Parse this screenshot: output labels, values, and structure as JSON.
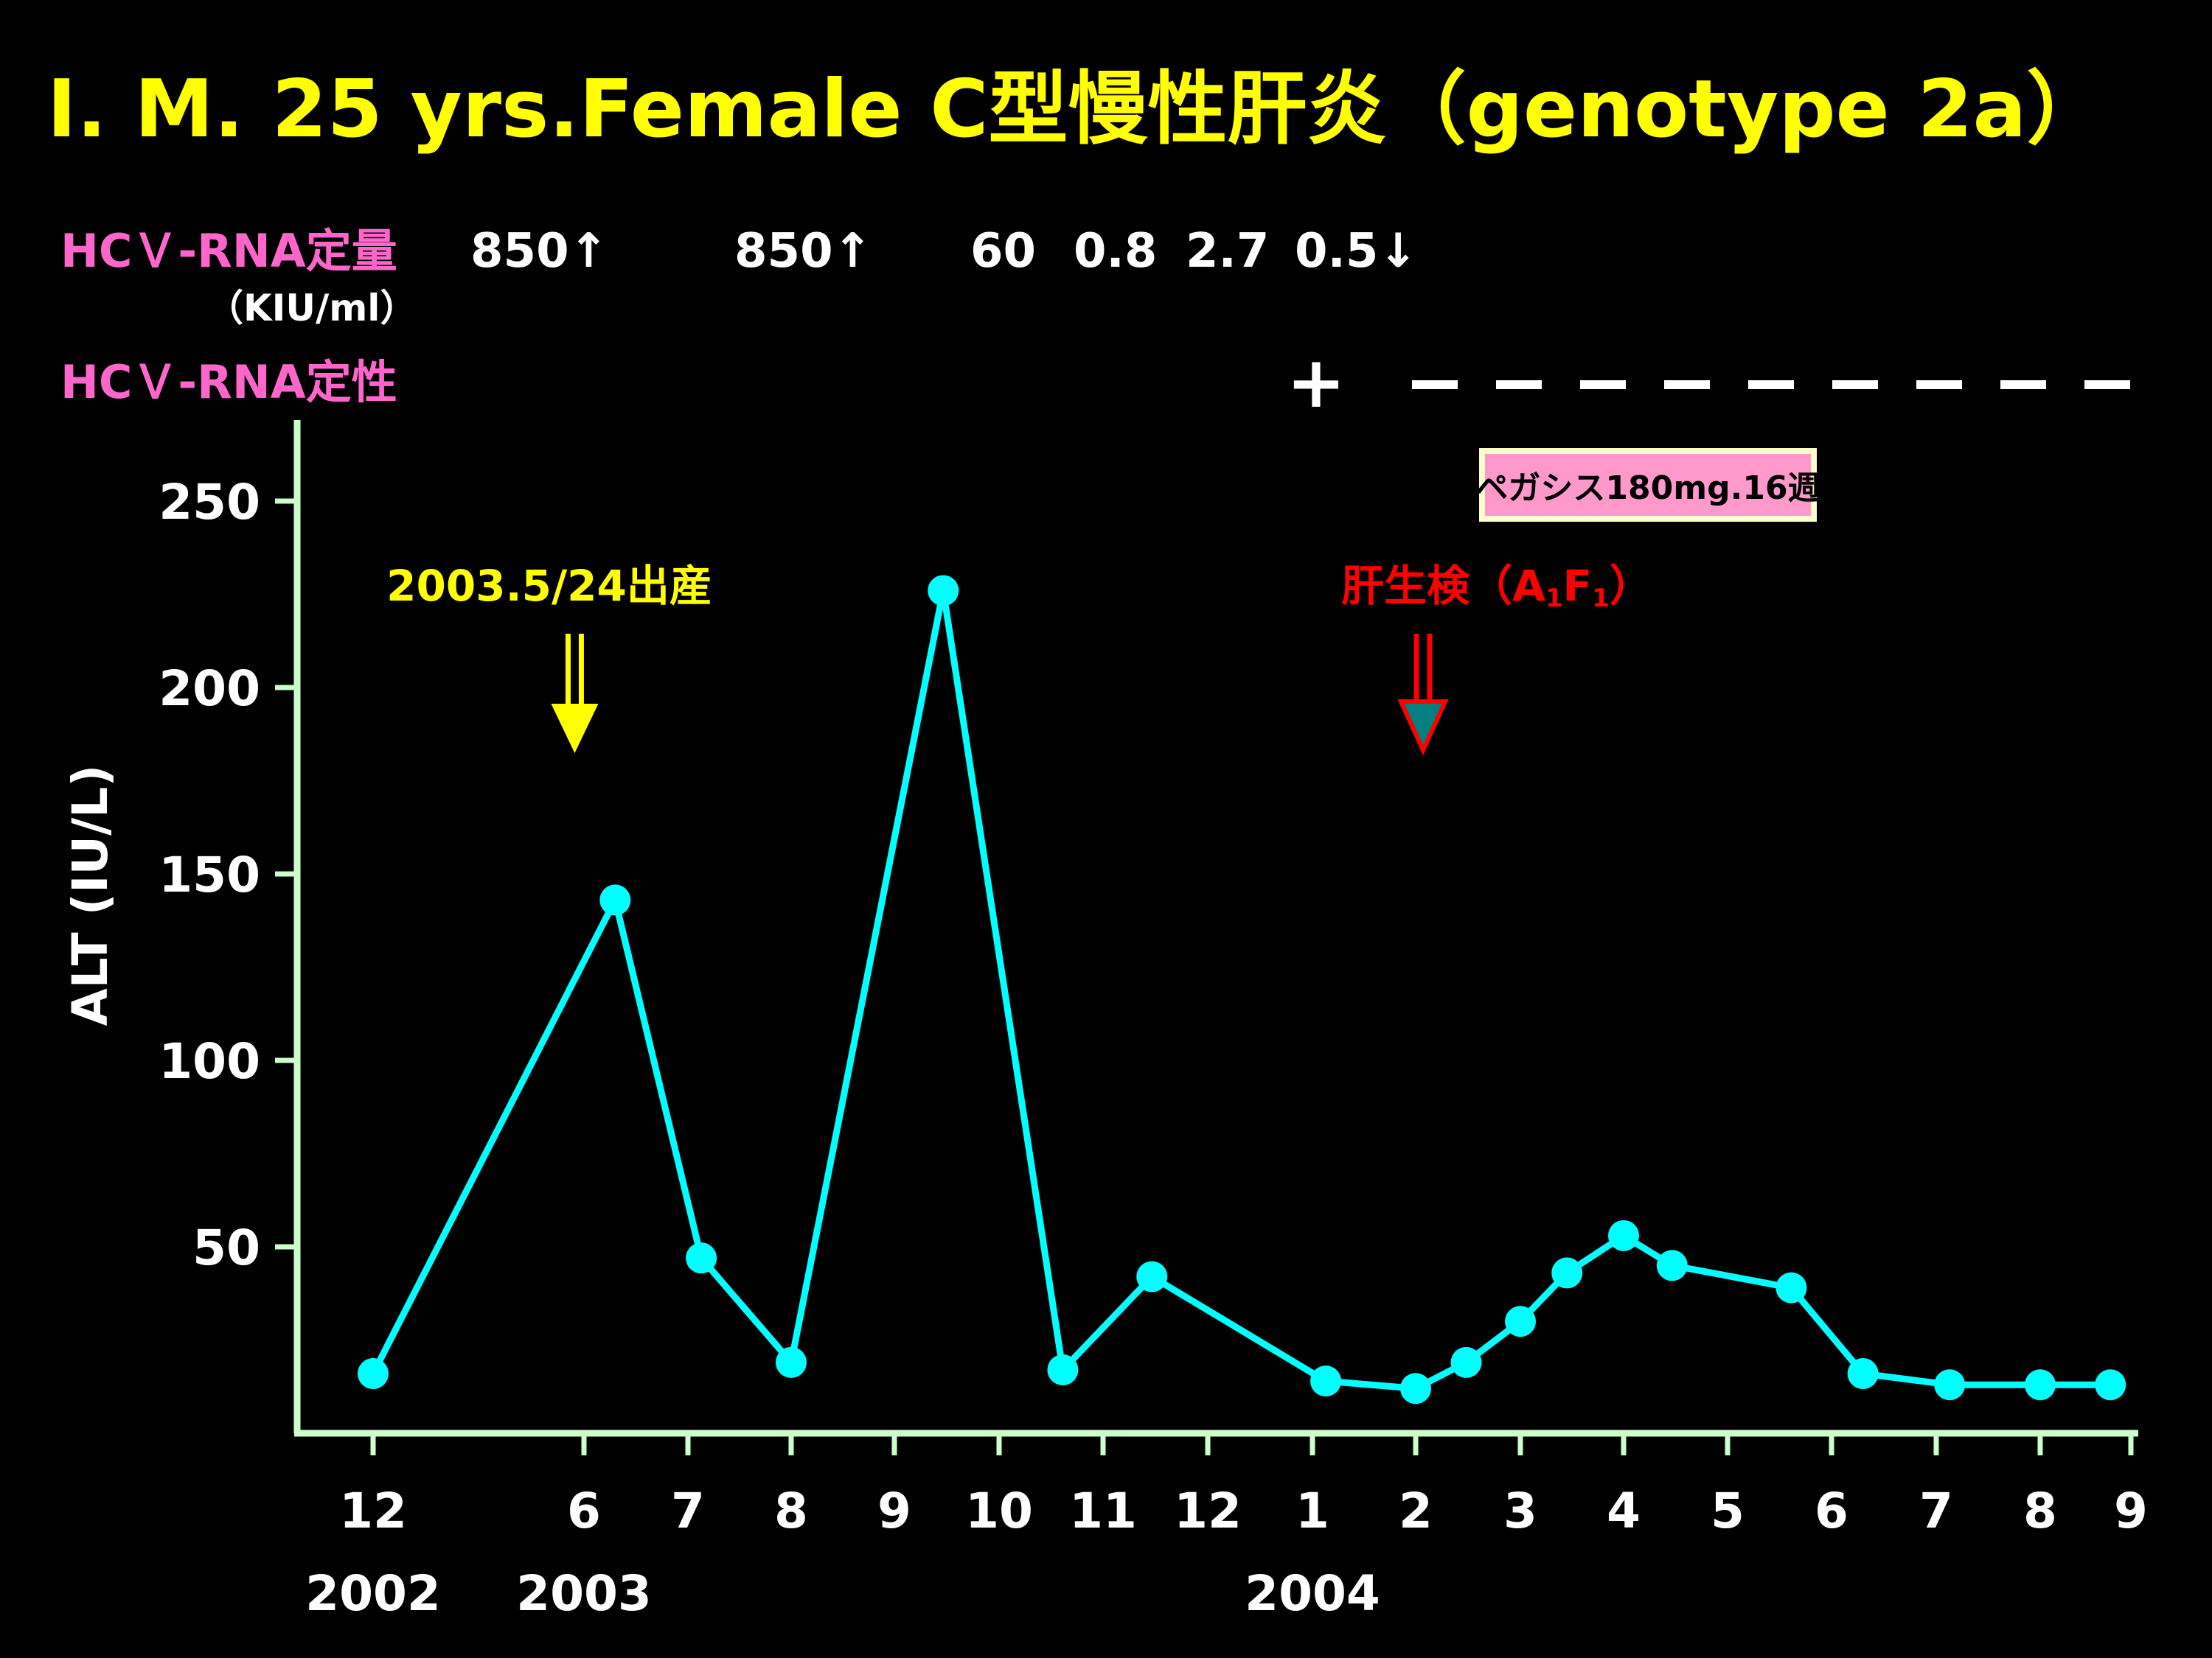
{
  "chart_data": {
    "type": "line",
    "title": "I. M. 25 yrs.Female C型慢性肝炎（genotype 2a）",
    "ylabel": "ALT (IU/L)",
    "xlabel": "",
    "ylim": [
      0,
      270
    ],
    "yticks": [
      50,
      100,
      150,
      200,
      250
    ],
    "grid": false,
    "legend": "none",
    "x_month_ticks": [
      "12",
      "6",
      "7",
      "8",
      "9",
      "10",
      "11",
      "12",
      "1",
      "2",
      "3",
      "4",
      "5",
      "6",
      "7",
      "8",
      "9"
    ],
    "x_year_labels": [
      "2002",
      "2003",
      "2004"
    ],
    "series": [
      {
        "color": "#00ffff",
        "x": [
          "2002-12-01",
          "2003-06-10",
          "2003-07-05",
          "2003-08-01",
          "2003-09-15",
          "2003-10-20",
          "2003-11-15",
          "2004-01-05",
          "2004-02-01",
          "2004-02-15",
          "2004-03-01",
          "2004-03-15",
          "2004-04-01",
          "2004-04-15",
          "2004-05-20",
          "2004-06-10",
          "2004-07-05",
          "2004-08-01",
          "2004-08-25"
        ],
        "values": [
          16,
          143,
          47,
          19,
          226,
          17,
          42,
          14,
          12,
          19,
          30,
          43,
          53,
          45,
          39,
          16,
          13,
          13,
          13
        ]
      }
    ],
    "annotations": {
      "delivery_label": "2003.5/24出産",
      "delivery_date": "2003-05-24",
      "biopsy_label": "肝生検（A1F1）",
      "biopsy_date": "2004-02-01",
      "treatment_label": "ペガシス180mg.16週"
    },
    "hcv_quant": {
      "label": "HCＶ-RNA定量",
      "unit": "（KIU/ml）",
      "values": [
        "850↑",
        "850↑",
        "60",
        "0.8",
        "2.7",
        "0.5↓"
      ]
    },
    "hcv_qual": {
      "label": "HCＶ-RNA定性",
      "plus": "+"
    },
    "colors": {
      "title": "#ffff00",
      "hcv_label": "#ff66cc",
      "axis": "#ccffcc",
      "line": "#00ffff",
      "delivery": "#ffff00",
      "biopsy": "#ff0000",
      "treatment_fill": "#ff99cc",
      "treatment_border": "#ffffcc"
    }
  }
}
